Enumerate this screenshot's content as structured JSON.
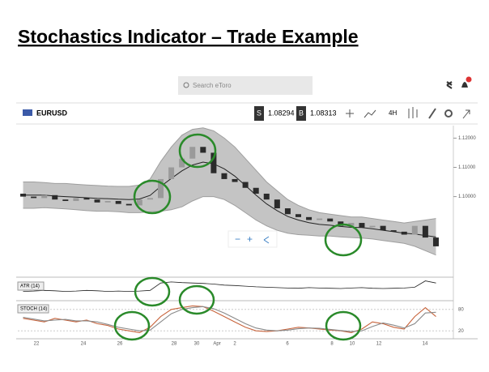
{
  "header": {
    "title": "Stochastics Indicator – Trade Example"
  },
  "search": {
    "placeholder": "Search eToro"
  },
  "toolbar": {
    "symbol": "EURUSD",
    "sell_label": "S",
    "sell_price": "1.08294",
    "buy_label": "B",
    "buy_price": "1.08313",
    "timeframe": "4H"
  },
  "chart_data": {
    "type": "candlestick",
    "up_color": "#9a9a9a",
    "down_color": "#2b2b2b",
    "ylim": [
      1.073,
      1.124
    ],
    "yticks": [
      {
        "value": 1.12,
        "label": "1.12000"
      },
      {
        "value": 1.11,
        "label": "1.11000"
      },
      {
        "value": 1.1,
        "label": "1.10000"
      }
    ],
    "open": [
      1.101,
      1.1,
      1.0995,
      1.1005,
      1.099,
      1.0985,
      1.0995,
      1.099,
      1.098,
      1.0985,
      1.0975,
      1.097,
      1.099,
      1.0995,
      1.106,
      1.11,
      1.113,
      1.117,
      1.115,
      1.108,
      1.106,
      1.105,
      1.103,
      1.101,
      1.099,
      1.096,
      1.094,
      1.093,
      1.092,
      1.0925,
      1.0915,
      1.09,
      1.091,
      1.0895,
      1.09,
      1.0885,
      1.088,
      1.087,
      1.09,
      1.086
    ],
    "close": [
      1.1,
      1.0995,
      1.1005,
      1.099,
      1.0985,
      1.0995,
      1.099,
      1.098,
      1.0985,
      1.0975,
      1.097,
      1.099,
      1.0995,
      1.106,
      1.11,
      1.113,
      1.117,
      1.115,
      1.108,
      1.106,
      1.105,
      1.103,
      1.101,
      1.099,
      1.096,
      1.094,
      1.093,
      1.092,
      1.0925,
      1.0915,
      1.09,
      1.091,
      1.0895,
      1.09,
      1.0885,
      1.088,
      1.087,
      1.09,
      1.086,
      1.083
    ],
    "bands": {
      "color": "#9e9e9e",
      "upper": [
        1.105,
        1.105,
        1.1048,
        1.1045,
        1.1045,
        1.1042,
        1.104,
        1.1038,
        1.1036,
        1.1035,
        1.1035,
        1.104,
        1.106,
        1.112,
        1.117,
        1.121,
        1.123,
        1.1235,
        1.1225,
        1.12,
        1.117,
        1.113,
        1.109,
        1.105,
        1.102,
        1.099,
        1.097,
        1.0955,
        1.0945,
        1.094,
        1.0935,
        1.093,
        1.093,
        1.0925,
        1.092,
        1.0915,
        1.091,
        1.0915,
        1.092,
        1.0925
      ],
      "middle": [
        1.1005,
        1.1005,
        1.1005,
        1.1002,
        1.1,
        1.0998,
        1.0996,
        1.0994,
        1.0993,
        1.0991,
        1.099,
        1.0992,
        1.1004,
        1.1035,
        1.1062,
        1.1088,
        1.1108,
        1.1118,
        1.1112,
        1.1095,
        1.107,
        1.1038,
        1.1005,
        1.0975,
        1.0952,
        1.0932,
        1.092,
        1.0911,
        1.0905,
        1.0902,
        1.0898,
        1.0895,
        1.0894,
        1.089,
        1.0885,
        1.088,
        1.0875,
        1.0872,
        1.0867,
        1.0862
      ],
      "lower": [
        1.096,
        1.096,
        1.0962,
        1.096,
        1.0958,
        1.0955,
        1.0952,
        1.095,
        1.095,
        1.0948,
        1.0945,
        1.0945,
        1.0948,
        1.095,
        1.0955,
        1.0965,
        1.0985,
        1.1,
        1.1,
        1.099,
        1.097,
        1.0945,
        1.092,
        1.09,
        1.0885,
        1.0875,
        1.087,
        1.0868,
        1.0865,
        1.0865,
        1.0862,
        1.086,
        1.0858,
        1.0855,
        1.085,
        1.0845,
        1.084,
        1.083,
        1.0815,
        1.08
      ]
    },
    "x_labels": [
      "22",
      "24",
      "26",
      "28",
      "30",
      "Apr",
      "2",
      "6",
      "8",
      "10",
      "12",
      "14"
    ],
    "atr": {
      "name": "ATR (14)",
      "color": "#222222",
      "ylim": [
        0,
        100
      ],
      "values": [
        40,
        42,
        45,
        43,
        40,
        42,
        45,
        43,
        40,
        42,
        40,
        42,
        45,
        80,
        85,
        82,
        80,
        78,
        75,
        70,
        68,
        65,
        62,
        60,
        58,
        56,
        55,
        58,
        56,
        55,
        54,
        56,
        58,
        55,
        54,
        55,
        56,
        60,
        90,
        80
      ]
    },
    "stoch": {
      "name": "STOCH (14)",
      "ylim": [
        0,
        100
      ],
      "yticks": [
        80,
        20
      ],
      "series": [
        {
          "color": "#c8643c",
          "values": [
            55,
            50,
            45,
            55,
            50,
            45,
            50,
            40,
            35,
            25,
            20,
            15,
            30,
            60,
            80,
            85,
            90,
            88,
            75,
            60,
            45,
            30,
            20,
            18,
            20,
            25,
            30,
            28,
            25,
            22,
            20,
            15,
            25,
            45,
            40,
            30,
            25,
            60,
            85,
            60
          ]
        },
        {
          "color": "#8a8a8a",
          "values": [
            58,
            53,
            48,
            50,
            52,
            48,
            48,
            45,
            38,
            30,
            25,
            20,
            22,
            45,
            68,
            80,
            85,
            88,
            82,
            70,
            55,
            40,
            28,
            22,
            20,
            22,
            26,
            28,
            27,
            24,
            21,
            18,
            20,
            32,
            42,
            36,
            28,
            40,
            70,
            72
          ]
        }
      ]
    }
  }
}
